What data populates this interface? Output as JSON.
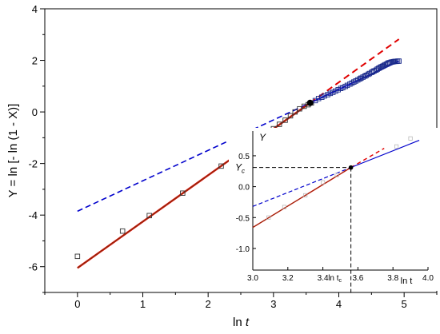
{
  "chart_data": [
    {
      "type": "scatter",
      "role": "main",
      "title": "",
      "xlabel_main": "ln ",
      "xlabel_italic": "t",
      "ylabel": "Y = ln [- ln (1 - X)]",
      "xlim": [
        -0.5,
        5.5
      ],
      "ylim": [
        -7,
        4
      ],
      "xticks": [
        "0",
        "1",
        "2",
        "3",
        "4",
        "5"
      ],
      "yticks": [
        "-6",
        "-4",
        "-2",
        "0",
        "2",
        "4"
      ],
      "grid": false,
      "colors": {
        "fit_low": "#e00000",
        "fit_low_inner": "#7a3a10",
        "fit_high": "#0000cc",
        "points": "#333333",
        "high_points": "#1a2a8a",
        "crossover": "#000000"
      },
      "series": [
        {
          "points": [
            [
              0,
              -5.6
            ],
            [
              0.69,
              -4.62
            ],
            [
              1.1,
              -4.02
            ],
            [
              1.61,
              -3.15
            ],
            [
              2.2,
              -2.1
            ],
            [
              2.56,
              -1.45
            ],
            [
              2.71,
              -1.25
            ],
            [
              2.83,
              -1.0
            ],
            [
              3.0,
              -0.65
            ],
            [
              3.09,
              -0.48
            ],
            [
              3.18,
              -0.32
            ],
            [
              3.26,
              -0.15
            ],
            [
              3.33,
              0.0
            ],
            [
              3.4,
              0.12
            ],
            [
              3.47,
              0.22
            ],
            [
              3.53,
              0.28
            ],
            [
              3.58,
              0.35
            ],
            [
              3.64,
              0.44
            ],
            [
              3.69,
              0.52
            ],
            [
              3.74,
              0.57
            ],
            [
              3.78,
              0.62
            ],
            [
              3.83,
              0.67
            ],
            [
              3.87,
              0.72
            ],
            [
              3.91,
              0.76
            ],
            [
              3.95,
              0.81
            ],
            [
              3.99,
              0.86
            ],
            [
              4.03,
              0.91
            ],
            [
              4.06,
              0.94
            ],
            [
              4.1,
              0.99
            ],
            [
              4.13,
              1.03
            ],
            [
              4.17,
              1.08
            ],
            [
              4.2,
              1.12
            ],
            [
              4.23,
              1.16
            ],
            [
              4.26,
              1.2
            ],
            [
              4.29,
              1.24
            ],
            [
              4.32,
              1.28
            ],
            [
              4.34,
              1.31
            ],
            [
              4.37,
              1.35
            ],
            [
              4.4,
              1.39
            ],
            [
              4.42,
              1.42
            ],
            [
              4.45,
              1.46
            ],
            [
              4.47,
              1.49
            ],
            [
              4.5,
              1.53
            ],
            [
              4.52,
              1.56
            ],
            [
              4.54,
              1.59
            ],
            [
              4.57,
              1.62
            ],
            [
              4.59,
              1.66
            ],
            [
              4.61,
              1.69
            ],
            [
              4.63,
              1.72
            ],
            [
              4.65,
              1.75
            ],
            [
              4.67,
              1.77
            ],
            [
              4.69,
              1.8
            ],
            [
              4.71,
              1.83
            ],
            [
              4.73,
              1.85
            ],
            [
              4.75,
              1.88
            ],
            [
              4.76,
              1.9
            ],
            [
              4.78,
              1.91
            ],
            [
              4.8,
              1.93
            ],
            [
              4.82,
              1.94
            ],
            [
              4.84,
              1.95
            ],
            [
              4.86,
              1.96
            ],
            [
              4.88,
              1.96
            ],
            [
              4.9,
              1.97
            ],
            [
              4.92,
              1.97
            ]
          ]
        }
      ],
      "fit_low": {
        "solid": [
          [
            0,
            -6.05
          ],
          [
            3.56,
            0.35
          ]
        ],
        "dashed": [
          [
            3.56,
            0.35
          ],
          [
            4.92,
            2.82
          ]
        ]
      },
      "fit_high": {
        "solid": [
          [
            3.56,
            0.35
          ],
          [
            4.92,
            1.97
          ]
        ],
        "dashed": [
          [
            0,
            -3.85
          ],
          [
            3.56,
            0.35
          ]
        ]
      },
      "crossover": [
        3.56,
        0.35
      ]
    },
    {
      "type": "scatter",
      "role": "inset",
      "title": "",
      "xlabel": "ln t",
      "ylabel": "Y",
      "xlim": [
        3.0,
        4.0
      ],
      "ylim": [
        -1.35,
        0.9
      ],
      "xticks": [
        "3.0",
        "3.2",
        "3.4",
        "3.6",
        "3.8",
        "4.0"
      ],
      "yticks": [
        "0.5",
        "0.0",
        "-0.5",
        "-1.0"
      ],
      "marker_x_base": "ln t",
      "marker_x_sub": "c",
      "marker_y_base": "Y",
      "marker_y_sub": "c",
      "fit_low": {
        "solid": [
          [
            3.0,
            -0.66
          ],
          [
            3.56,
            0.31
          ]
        ],
        "dashed": [
          [
            3.56,
            0.31
          ],
          [
            3.75,
            0.62
          ]
        ]
      },
      "fit_high": {
        "solid": [
          [
            3.56,
            0.31
          ],
          [
            3.95,
            0.75
          ]
        ],
        "dashed": [
          [
            3.0,
            -0.32
          ],
          [
            3.56,
            0.31
          ]
        ]
      },
      "points": [
        [
          3.09,
          -0.5
        ],
        [
          3.18,
          -0.33
        ],
        [
          3.3,
          -0.14
        ],
        [
          3.4,
          0.07
        ],
        [
          3.48,
          0.19
        ],
        [
          3.82,
          0.65
        ],
        [
          3.9,
          0.78
        ]
      ],
      "crossover": [
        3.56,
        0.31
      ]
    }
  ]
}
